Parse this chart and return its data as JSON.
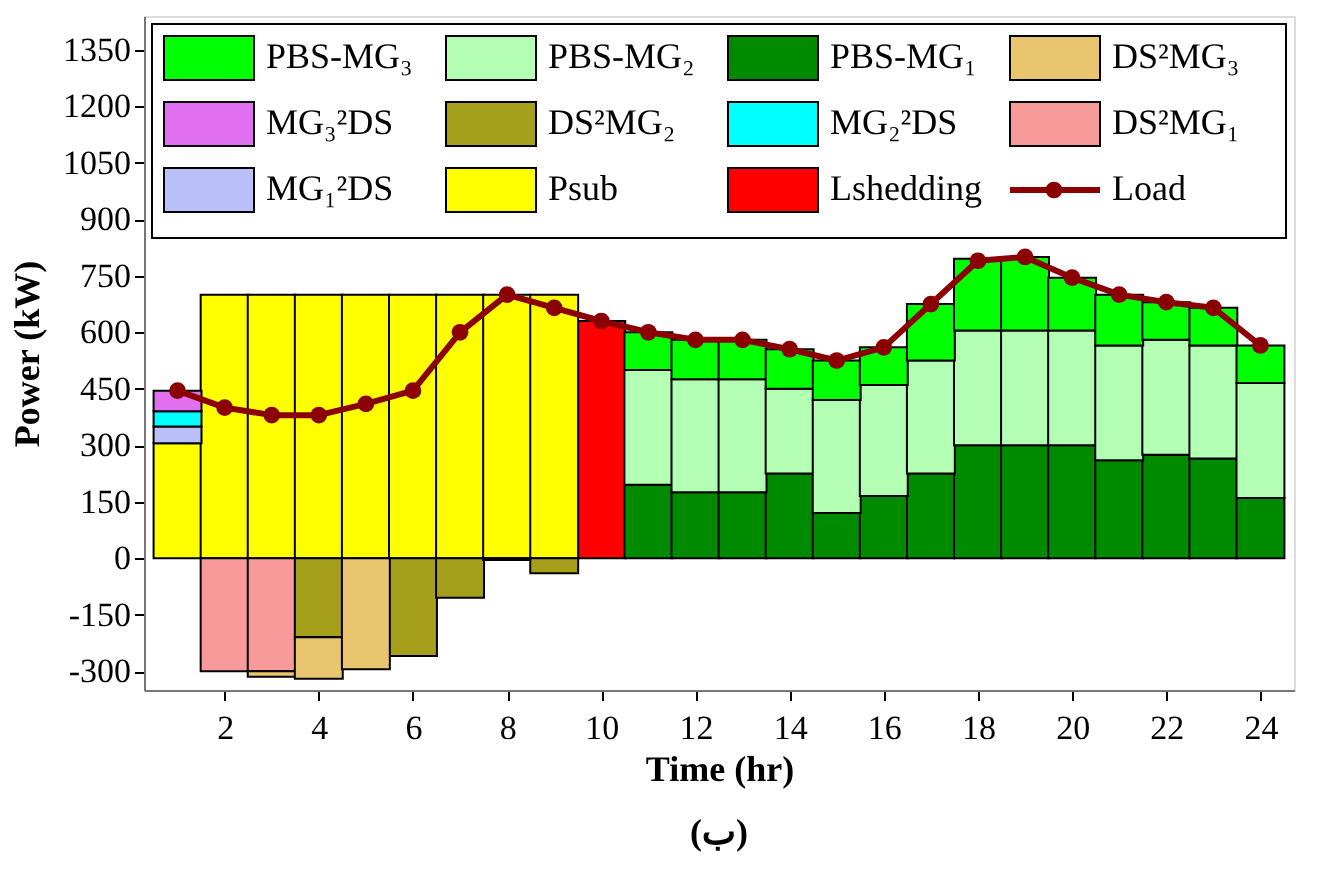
{
  "chart_data": {
    "type": "bar",
    "stacked": true,
    "xlabel": "Time (hr)",
    "ylabel": "Power (kW)",
    "x": [
      1,
      2,
      3,
      4,
      5,
      6,
      7,
      8,
      9,
      10,
      11,
      12,
      13,
      14,
      15,
      16,
      17,
      18,
      19,
      20,
      21,
      22,
      23,
      24
    ],
    "xlim": [
      0.5,
      24.5
    ],
    "xticks": [
      2,
      4,
      6,
      8,
      10,
      12,
      14,
      16,
      18,
      20,
      22,
      24
    ],
    "ylim": [
      -350,
      1440
    ],
    "yticks": [
      -300,
      -150,
      0,
      150,
      300,
      450,
      600,
      750,
      900,
      1050,
      1200,
      1350
    ],
    "grid": false,
    "legend": "top",
    "marker": "circle",
    "line_style": "solid",
    "annotations": [
      "(ب)"
    ],
    "series": [
      {
        "name": "Lshedding",
        "color": "#ff0000",
        "values": [
          null,
          null,
          null,
          null,
          null,
          null,
          null,
          null,
          null,
          630,
          null,
          null,
          null,
          null,
          null,
          null,
          null,
          null,
          null,
          null,
          null,
          null,
          null,
          null
        ]
      },
      {
        "name": "Psub",
        "color": "#ffff00",
        "values": [
          305,
          700,
          700,
          700,
          700,
          700,
          700,
          700,
          700,
          null,
          null,
          null,
          null,
          null,
          null,
          null,
          null,
          null,
          null,
          null,
          null,
          null,
          null,
          null
        ]
      },
      {
        "name": "MG₁²DS",
        "color": "#b9c0fa",
        "values": [
          45,
          null,
          null,
          null,
          null,
          null,
          null,
          null,
          null,
          null,
          null,
          null,
          null,
          null,
          null,
          null,
          null,
          null,
          null,
          null,
          null,
          null,
          null,
          null
        ]
      },
      {
        "name": "DS²MG₁",
        "color": "#f99a9a",
        "values": [
          null,
          -300,
          -300,
          null,
          null,
          null,
          null,
          null,
          null,
          null,
          null,
          null,
          null,
          null,
          null,
          null,
          null,
          null,
          null,
          null,
          null,
          null,
          null,
          null
        ]
      },
      {
        "name": "MG₂²DS",
        "color": "#00ffff",
        "values": [
          40,
          null,
          null,
          null,
          null,
          null,
          null,
          null,
          null,
          null,
          null,
          null,
          null,
          null,
          null,
          null,
          null,
          null,
          null,
          null,
          null,
          null,
          null,
          null
        ]
      },
      {
        "name": "DS²MG₂",
        "color": "#a69f1b",
        "values": [
          null,
          null,
          null,
          -210,
          null,
          -260,
          -105,
          -5,
          -40,
          null,
          null,
          null,
          null,
          null,
          null,
          null,
          null,
          null,
          null,
          null,
          null,
          null,
          null,
          null
        ]
      },
      {
        "name": "MG₃²DS",
        "color": "#e070f0",
        "values": [
          55,
          null,
          null,
          null,
          null,
          null,
          null,
          null,
          null,
          null,
          null,
          null,
          null,
          null,
          null,
          null,
          null,
          null,
          null,
          null,
          null,
          null,
          null,
          null
        ]
      },
      {
        "name": "DS²MG₃",
        "color": "#eac56f",
        "values": [
          null,
          null,
          -15,
          -110,
          -295,
          null,
          null,
          null,
          null,
          null,
          null,
          null,
          null,
          null,
          null,
          null,
          null,
          null,
          null,
          null,
          null,
          null,
          null,
          null
        ]
      },
      {
        "name": "PBS-MG₁",
        "color": "#008a00",
        "values": [
          null,
          null,
          null,
          null,
          null,
          null,
          null,
          null,
          null,
          null,
          195,
          175,
          175,
          225,
          120,
          165,
          225,
          300,
          300,
          300,
          260,
          275,
          265,
          160
        ]
      },
      {
        "name": "PBS-MG₂",
        "color": "#b3ffb3",
        "values": [
          null,
          null,
          null,
          null,
          null,
          null,
          null,
          null,
          null,
          null,
          305,
          300,
          300,
          225,
          300,
          295,
          300,
          305,
          305,
          305,
          305,
          305,
          300,
          305
        ]
      },
      {
        "name": "PBS-MG₃",
        "color": "#00ff00",
        "values": [
          null,
          null,
          null,
          null,
          null,
          null,
          null,
          null,
          null,
          null,
          100,
          105,
          105,
          105,
          105,
          100,
          150,
          190,
          195,
          140,
          135,
          100,
          100,
          100
        ]
      },
      {
        "name": "Load",
        "type": "line",
        "color": "#8b0000",
        "values": [
          445,
          400,
          380,
          380,
          410,
          445,
          600,
          700,
          665,
          630,
          600,
          580,
          580,
          555,
          525,
          560,
          675,
          790,
          800,
          745,
          700,
          680,
          665,
          565
        ]
      }
    ]
  }
}
